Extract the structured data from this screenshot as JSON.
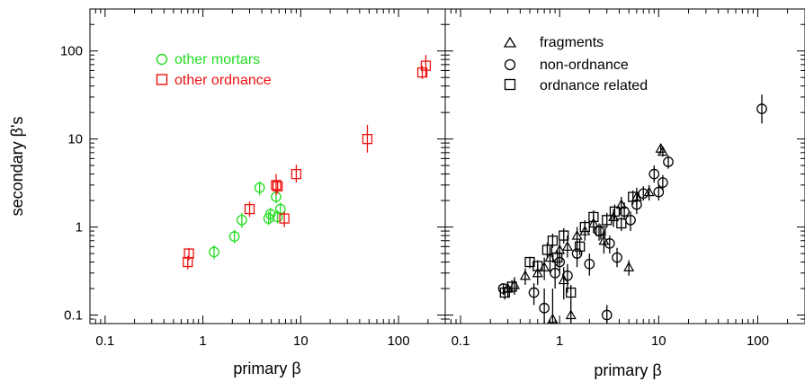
{
  "chart_data": [
    {
      "type": "scatter",
      "scale": "log-log",
      "xlabel": "primary β",
      "ylabel": "secondary β's",
      "xlim": [
        0.07,
        300
      ],
      "ylim": [
        0.08,
        300
      ],
      "x_ticks": [
        "0.1",
        "1",
        "10",
        "100"
      ],
      "y_ticks": [
        "0.1",
        "1",
        "10",
        "100"
      ],
      "legend_placement": "top-left",
      "colors": {
        "other_mortars": "#22dd22",
        "other_ordnance": "#ee1111"
      },
      "series": [
        {
          "name": "other mortars",
          "marker": "circle",
          "color": "#22dd22",
          "points": [
            {
              "x": 1.3,
              "y": 0.52,
              "ylo": 0.43,
              "yhi": 0.62
            },
            {
              "x": 2.1,
              "y": 0.78,
              "ylo": 0.65,
              "yhi": 0.93
            },
            {
              "x": 2.5,
              "y": 1.2,
              "ylo": 0.98,
              "yhi": 1.45
            },
            {
              "x": 3.8,
              "y": 2.8,
              "ylo": 2.3,
              "yhi": 3.3
            },
            {
              "x": 4.7,
              "y": 1.25,
              "ylo": 1.05,
              "yhi": 1.5
            },
            {
              "x": 4.9,
              "y": 1.4,
              "ylo": 1.15,
              "yhi": 1.65
            },
            {
              "x": 5.6,
              "y": 2.2,
              "ylo": 1.85,
              "yhi": 2.6
            },
            {
              "x": 6.2,
              "y": 1.6,
              "ylo": 1.35,
              "yhi": 1.9
            },
            {
              "x": 5.8,
              "y": 1.3,
              "ylo": 1.1,
              "yhi": 1.55
            }
          ]
        },
        {
          "name": "other ordnance",
          "marker": "square",
          "color": "#ee1111",
          "points": [
            {
              "x": 0.7,
              "y": 0.4,
              "ylo": 0.33,
              "yhi": 0.47
            },
            {
              "x": 0.72,
              "y": 0.5,
              "ylo": 0.42,
              "yhi": 0.58
            },
            {
              "x": 3.0,
              "y": 1.6,
              "ylo": 1.3,
              "yhi": 1.95
            },
            {
              "x": 5.6,
              "y": 3.0,
              "ylo": 2.3,
              "yhi": 4.0
            },
            {
              "x": 5.8,
              "y": 2.9,
              "ylo": 2.4,
              "yhi": 3.4
            },
            {
              "x": 6.8,
              "y": 1.25,
              "ylo": 1.0,
              "yhi": 1.5
            },
            {
              "x": 9.0,
              "y": 4.0,
              "ylo": 3.2,
              "yhi": 5.1
            },
            {
              "x": 48,
              "y": 10,
              "ylo": 7,
              "yhi": 14.5
            },
            {
              "x": 175,
              "y": 57,
              "ylo": 48,
              "yhi": 68
            },
            {
              "x": 190,
              "y": 68,
              "ylo": 50,
              "yhi": 90
            }
          ]
        }
      ]
    },
    {
      "type": "scatter",
      "scale": "log-log",
      "xlabel": "primary β",
      "ylabel": "",
      "xlim": [
        0.07,
        300
      ],
      "ylim": [
        0.08,
        300
      ],
      "x_ticks": [
        "0.1",
        "1",
        "10",
        "100"
      ],
      "legend_placement": "top-left",
      "series": [
        {
          "name": "fragments",
          "marker": "triangle",
          "color": "#000000",
          "points": [
            {
              "x": 0.3,
              "y": 0.2,
              "ylo": 0.16,
              "yhi": 0.24
            },
            {
              "x": 0.35,
              "y": 0.22,
              "ylo": 0.17,
              "yhi": 0.27
            },
            {
              "x": 0.45,
              "y": 0.28,
              "ylo": 0.22,
              "yhi": 0.34
            },
            {
              "x": 0.6,
              "y": 0.3,
              "ylo": 0.22,
              "yhi": 0.38
            },
            {
              "x": 0.7,
              "y": 0.35,
              "ylo": 0.25,
              "yhi": 0.45
            },
            {
              "x": 0.8,
              "y": 0.45,
              "ylo": 0.3,
              "yhi": 0.6
            },
            {
              "x": 0.85,
              "y": 0.09,
              "ylo": 0.08,
              "yhi": 0.2
            },
            {
              "x": 1.0,
              "y": 0.55,
              "ylo": 0.4,
              "yhi": 0.7
            },
            {
              "x": 1.1,
              "y": 0.25,
              "ylo": 0.15,
              "yhi": 0.35
            },
            {
              "x": 1.2,
              "y": 0.6,
              "ylo": 0.45,
              "yhi": 0.8
            },
            {
              "x": 1.3,
              "y": 0.1,
              "ylo": 0.08,
              "yhi": 0.15
            },
            {
              "x": 1.5,
              "y": 0.8,
              "ylo": 0.6,
              "yhi": 1.0
            },
            {
              "x": 1.8,
              "y": 0.9,
              "ylo": 0.7,
              "yhi": 1.1
            },
            {
              "x": 2.2,
              "y": 1.1,
              "ylo": 0.85,
              "yhi": 1.4
            },
            {
              "x": 2.8,
              "y": 0.7,
              "ylo": 0.5,
              "yhi": 0.9
            },
            {
              "x": 3.5,
              "y": 1.3,
              "ylo": 1.0,
              "yhi": 1.6
            },
            {
              "x": 4.2,
              "y": 1.8,
              "ylo": 1.4,
              "yhi": 2.2
            },
            {
              "x": 5.0,
              "y": 0.35,
              "ylo": 0.28,
              "yhi": 0.42
            },
            {
              "x": 6.0,
              "y": 2.2,
              "ylo": 1.7,
              "yhi": 2.8
            },
            {
              "x": 8.0,
              "y": 2.5,
              "ylo": 2.0,
              "yhi": 3.0
            },
            {
              "x": 10.5,
              "y": 7.8,
              "ylo": 6.8,
              "yhi": 8.8
            },
            {
              "x": 11.0,
              "y": 7.2,
              "ylo": 6.3,
              "yhi": 8.2
            }
          ]
        },
        {
          "name": "non-ordnance",
          "marker": "circle",
          "color": "#000000",
          "points": [
            {
              "x": 0.27,
              "y": 0.2,
              "ylo": 0.17,
              "yhi": 0.23
            },
            {
              "x": 0.55,
              "y": 0.18,
              "ylo": 0.13,
              "yhi": 0.23
            },
            {
              "x": 0.7,
              "y": 0.12,
              "ylo": 0.08,
              "yhi": 0.2
            },
            {
              "x": 0.9,
              "y": 0.3,
              "ylo": 0.2,
              "yhi": 0.4
            },
            {
              "x": 1.0,
              "y": 0.4,
              "ylo": 0.3,
              "yhi": 0.5
            },
            {
              "x": 1.2,
              "y": 0.28,
              "ylo": 0.18,
              "yhi": 0.38
            },
            {
              "x": 1.5,
              "y": 0.5,
              "ylo": 0.35,
              "yhi": 0.65
            },
            {
              "x": 2.0,
              "y": 0.38,
              "ylo": 0.28,
              "yhi": 0.5
            },
            {
              "x": 2.5,
              "y": 0.9,
              "ylo": 0.7,
              "yhi": 1.1
            },
            {
              "x": 3.0,
              "y": 0.1,
              "ylo": 0.08,
              "yhi": 0.13
            },
            {
              "x": 3.2,
              "y": 0.65,
              "ylo": 0.5,
              "yhi": 0.8
            },
            {
              "x": 3.8,
              "y": 0.45,
              "ylo": 0.35,
              "yhi": 0.58
            },
            {
              "x": 4.5,
              "y": 1.5,
              "ylo": 1.2,
              "yhi": 1.9
            },
            {
              "x": 5.2,
              "y": 1.2,
              "ylo": 0.9,
              "yhi": 1.5
            },
            {
              "x": 6.0,
              "y": 1.8,
              "ylo": 1.4,
              "yhi": 2.2
            },
            {
              "x": 7.0,
              "y": 2.4,
              "ylo": 2.0,
              "yhi": 2.9
            },
            {
              "x": 9.0,
              "y": 4.0,
              "ylo": 3.2,
              "yhi": 5.0
            },
            {
              "x": 10.0,
              "y": 2.5,
              "ylo": 2.0,
              "yhi": 3.0
            },
            {
              "x": 11.0,
              "y": 3.2,
              "ylo": 2.6,
              "yhi": 3.9
            },
            {
              "x": 12.5,
              "y": 5.5,
              "ylo": 4.6,
              "yhi": 6.5
            },
            {
              "x": 110,
              "y": 22,
              "ylo": 15,
              "yhi": 32
            }
          ]
        },
        {
          "name": "ordnance related",
          "marker": "square",
          "color": "#000000",
          "points": [
            {
              "x": 0.28,
              "y": 0.18,
              "ylo": 0.15,
              "yhi": 0.21
            },
            {
              "x": 0.33,
              "y": 0.21,
              "ylo": 0.18,
              "yhi": 0.25
            },
            {
              "x": 0.5,
              "y": 0.4,
              "ylo": 0.34,
              "yhi": 0.46
            },
            {
              "x": 0.6,
              "y": 0.36,
              "ylo": 0.3,
              "yhi": 0.42
            },
            {
              "x": 0.75,
              "y": 0.55,
              "ylo": 0.45,
              "yhi": 0.66
            },
            {
              "x": 0.85,
              "y": 0.7,
              "ylo": 0.58,
              "yhi": 0.84
            },
            {
              "x": 0.95,
              "y": 0.45,
              "ylo": 0.36,
              "yhi": 0.55
            },
            {
              "x": 1.1,
              "y": 0.8,
              "ylo": 0.65,
              "yhi": 0.97
            },
            {
              "x": 1.3,
              "y": 0.18,
              "ylo": 0.15,
              "yhi": 0.22
            },
            {
              "x": 1.6,
              "y": 0.6,
              "ylo": 0.48,
              "yhi": 0.72
            },
            {
              "x": 1.8,
              "y": 1.0,
              "ylo": 0.82,
              "yhi": 1.2
            },
            {
              "x": 2.2,
              "y": 1.3,
              "ylo": 1.05,
              "yhi": 1.55
            },
            {
              "x": 2.6,
              "y": 0.9,
              "ylo": 0.72,
              "yhi": 1.08
            },
            {
              "x": 3.0,
              "y": 1.2,
              "ylo": 0.98,
              "yhi": 1.45
            },
            {
              "x": 3.6,
              "y": 1.5,
              "ylo": 1.2,
              "yhi": 1.8
            },
            {
              "x": 4.2,
              "y": 1.1,
              "ylo": 0.9,
              "yhi": 1.3
            },
            {
              "x": 5.5,
              "y": 2.2,
              "ylo": 1.8,
              "yhi": 2.6
            }
          ]
        }
      ]
    }
  ]
}
